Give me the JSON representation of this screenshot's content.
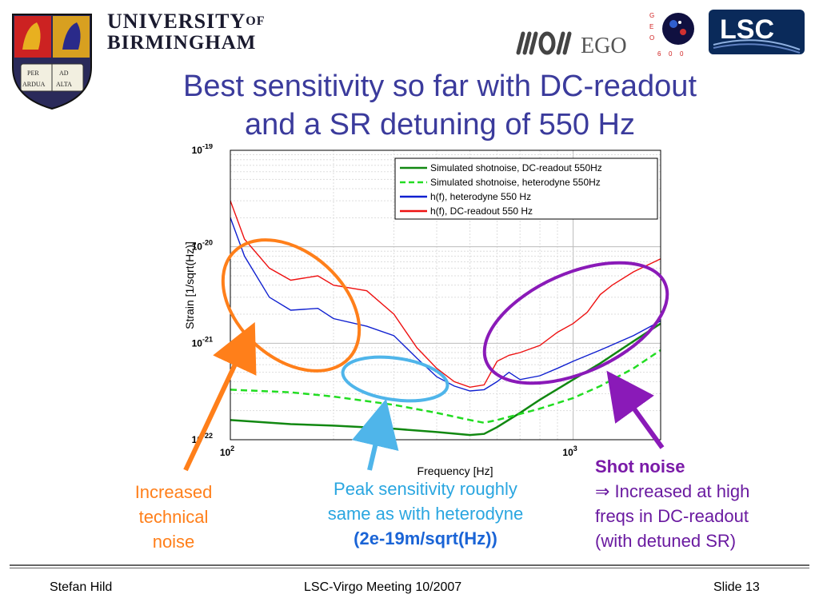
{
  "header": {
    "university_line1": "UNIVERSITY",
    "university_of": "OF",
    "university_line2": "BIRMINGHAM",
    "crest_motto_1": "PER",
    "crest_motto_2": "AD",
    "crest_motto_3": "ARDUA",
    "crest_motto_4": "ALTA",
    "ego_text": "EGO",
    "geo_letters": [
      "G",
      "E",
      "O",
      "6",
      "0",
      "0"
    ],
    "lsc_text": "LSC"
  },
  "title": {
    "line1": "Best sensitivity so far with DC-readout",
    "line2": "and a SR detuning of 550 Hz"
  },
  "colors": {
    "title": "#3b3b9c",
    "dc_sim": "#118811",
    "het_sim": "#22dd22",
    "het_meas": "#1020d0",
    "dc_meas": "#ee1111",
    "orange": "#ff7f1a",
    "lightblue": "#4fb5ea",
    "purple": "#8a1ab8"
  },
  "chart_data": {
    "type": "line",
    "xlabel": "Frequency [Hz]",
    "ylabel": "Strain [1/sqrt(Hz)]",
    "xscale": "log",
    "yscale": "log",
    "xlim": [
      100,
      1800
    ],
    "ylim": [
      1e-22,
      1e-19
    ],
    "x_ticks": [
      {
        "value": 100,
        "base": "10",
        "exp": "2"
      },
      {
        "value": 1000,
        "base": "10",
        "exp": "3"
      }
    ],
    "y_ticks": [
      {
        "value": 1e-19,
        "base": "10",
        "exp": "-19"
      },
      {
        "value": 1e-20,
        "base": "10",
        "exp": "-20"
      },
      {
        "value": 1e-21,
        "base": "10",
        "exp": "-21"
      },
      {
        "value": 1e-22,
        "base": "10",
        "exp": "-22"
      }
    ],
    "grid": true,
    "legend_position": "top-right",
    "series": [
      {
        "name": "Simulated shotnoise, DC-readout 550Hz",
        "key": "dc_sim",
        "style": "solid",
        "x": [
          100,
          150,
          200,
          300,
          400,
          500,
          550,
          600,
          700,
          800,
          1000,
          1200,
          1500,
          1800
        ],
        "y": [
          1.6e-22,
          1.45e-22,
          1.4e-22,
          1.3e-22,
          1.2e-22,
          1.12e-22,
          1.15e-22,
          1.35e-22,
          1.9e-22,
          2.6e-22,
          4.2e-22,
          6.2e-22,
          1.05e-21,
          1.6e-21
        ]
      },
      {
        "name": "Simulated shotnoise, heterodyne 550Hz",
        "key": "het_sim",
        "style": "dashed",
        "x": [
          100,
          150,
          200,
          300,
          400,
          500,
          550,
          600,
          700,
          800,
          1000,
          1200,
          1500,
          1800
        ],
        "y": [
          3.3e-22,
          3.1e-22,
          2.8e-22,
          2.3e-22,
          1.9e-22,
          1.6e-22,
          1.5e-22,
          1.6e-22,
          1.85e-22,
          2.1e-22,
          2.7e-22,
          3.6e-22,
          5.5e-22,
          8.5e-22
        ]
      },
      {
        "name": "h(f), heterodyne 550 Hz",
        "key": "het_meas",
        "style": "solid",
        "x": [
          100,
          110,
          130,
          150,
          180,
          200,
          250,
          300,
          350,
          400,
          450,
          500,
          550,
          600,
          650,
          700,
          800,
          900,
          1000,
          1200,
          1500,
          1800
        ],
        "y": [
          2e-20,
          8e-21,
          3e-21,
          2.2e-21,
          2.3e-21,
          1.8e-21,
          1.5e-21,
          1.2e-21,
          7e-22,
          4.5e-22,
          3.6e-22,
          3.2e-22,
          3.3e-22,
          4e-22,
          5e-22,
          4.2e-22,
          4.6e-22,
          5.5e-22,
          6.5e-22,
          8.5e-22,
          1.2e-21,
          1.7e-21
        ]
      },
      {
        "name": "h(f), DC-readout 550 Hz",
        "key": "dc_meas",
        "style": "solid",
        "x": [
          100,
          110,
          130,
          150,
          180,
          200,
          250,
          300,
          350,
          400,
          450,
          500,
          550,
          600,
          650,
          700,
          800,
          900,
          1000,
          1100,
          1200,
          1300,
          1500,
          1800
        ],
        "y": [
          3e-20,
          1.2e-20,
          6e-21,
          4.5e-21,
          5e-21,
          4e-21,
          3.5e-21,
          2e-21,
          9e-22,
          5.5e-22,
          4e-22,
          3.5e-22,
          3.7e-22,
          6.5e-22,
          7.5e-22,
          8e-22,
          9.5e-22,
          1.3e-21,
          1.6e-21,
          2.1e-21,
          3.2e-21,
          4e-21,
          5.5e-21,
          7.5e-21
        ]
      }
    ]
  },
  "annotations": {
    "left": [
      "Increased",
      "technical",
      "noise"
    ],
    "mid_1": "Peak sensitivity roughly",
    "mid_2": "same as with heterodyne",
    "mid_3": "(2e-19m/sqrt(Hz))",
    "right_head": "Shot noise",
    "right_1": "⇒ Increased at high",
    "right_2": "freqs in DC-readout",
    "right_3": "(with detuned SR)"
  },
  "footer": {
    "left": "Stefan Hild",
    "center": "LSC-Virgo Meeting 10/2007",
    "right": "Slide 13"
  }
}
